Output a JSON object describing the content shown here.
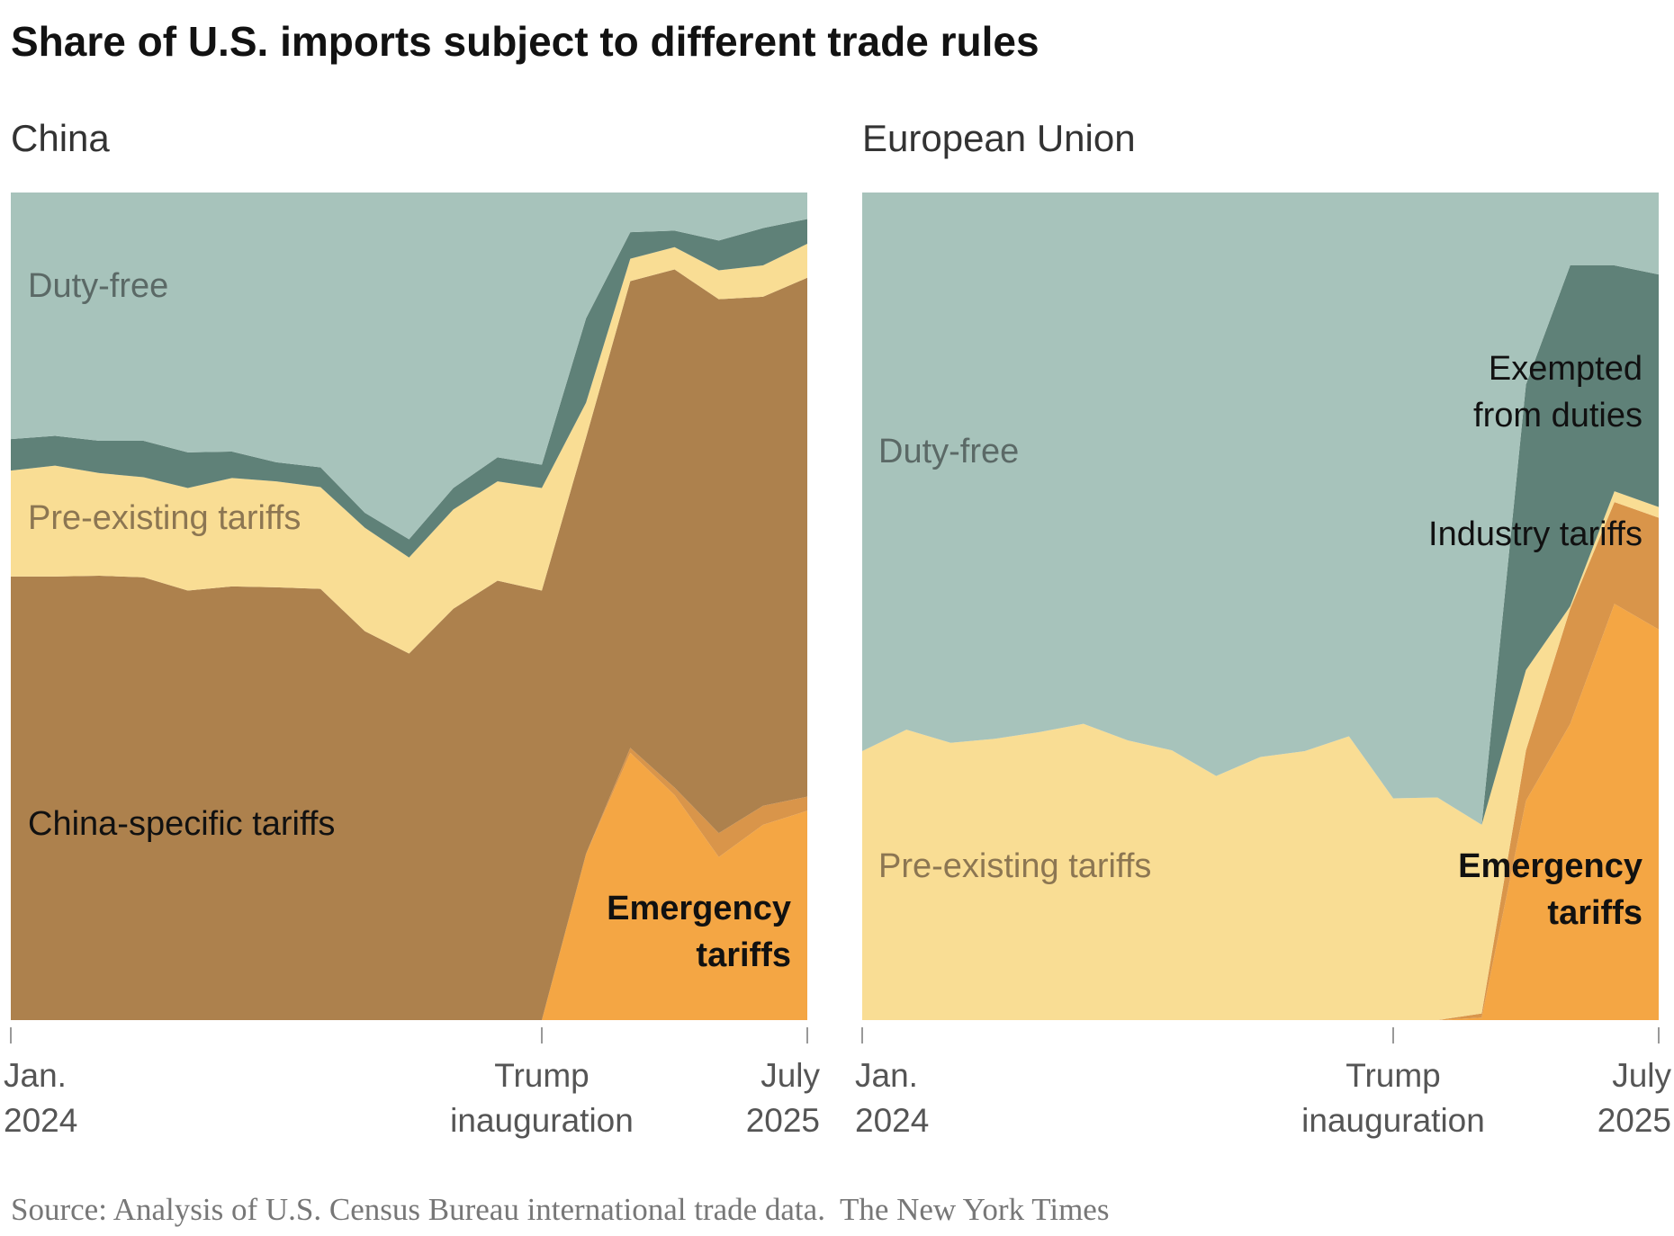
{
  "title": "Share of U.S. imports subject to different trade rules",
  "source": "Source: Analysis of U.S. Census Bureau international trade data.",
  "credit": "The New York Times",
  "chart_data": [
    {
      "type": "stacked-area",
      "title": "China",
      "categories": [
        "Jan. 2024",
        null,
        null,
        null,
        null,
        null,
        null,
        null,
        null,
        null,
        null,
        null,
        "Trump inauguration",
        null,
        null,
        null,
        null,
        null,
        "July 2025"
      ],
      "ylim": [
        0,
        100
      ],
      "series": [
        {
          "name": "Emergency tariffs",
          "color": "#f4a644",
          "values": [
            0,
            0,
            0,
            0,
            0,
            0,
            0,
            0,
            0,
            0,
            0,
            0,
            0,
            20.1,
            32.3,
            27.2,
            19.7,
            23.6,
            25.3
          ]
        },
        {
          "color": "#d9954a",
          "values": [
            0,
            0,
            0,
            0,
            0,
            0,
            0,
            0,
            0,
            0,
            0,
            0,
            0,
            0,
            0.6,
            0.9,
            2.9,
            2.3,
            1.7
          ]
        },
        {
          "name": "China-specific tariffs",
          "color": "#ad814d",
          "values": [
            53.6,
            53.6,
            53.7,
            53.5,
            51.9,
            52.4,
            52.3,
            52.1,
            47.0,
            44.3,
            49.7,
            53.1,
            51.9,
            50.3,
            56.4,
            62.6,
            64.5,
            61.5,
            62.7
          ]
        },
        {
          "name": "Pre-existing tariffs",
          "color": "#f9dd94",
          "values": [
            12.8,
            13.4,
            12.4,
            12.1,
            12.4,
            13.1,
            12.8,
            12.3,
            12.5,
            11.6,
            12.0,
            12.0,
            12.4,
            4.2,
            2.7,
            2.7,
            3.5,
            3.8,
            4.1
          ]
        },
        {
          "color": "#5f8178",
          "values": [
            3.8,
            3.6,
            3.9,
            4.4,
            4.3,
            3.2,
            2.3,
            2.4,
            1.8,
            2.2,
            2.6,
            2.9,
            2.8,
            10.2,
            3.2,
            2.0,
            3.6,
            4.5,
            3.0
          ]
        },
        {
          "name": "Duty-free",
          "color": "#a7c3bb",
          "values": [
            29.8,
            29.4,
            30.0,
            30.0,
            31.4,
            31.3,
            32.6,
            33.2,
            38.7,
            41.9,
            35.7,
            32.0,
            32.9,
            15.2,
            4.8,
            4.6,
            5.8,
            4.3,
            3.2
          ]
        }
      ]
    },
    {
      "type": "stacked-area",
      "title": "European Union",
      "categories": [
        "Jan. 2024",
        null,
        null,
        null,
        null,
        null,
        null,
        null,
        null,
        null,
        null,
        null,
        "Trump inauguration",
        null,
        null,
        null,
        null,
        null,
        "July 2025"
      ],
      "ylim": [
        0,
        100
      ],
      "series": [
        {
          "name": "Emergency tariffs",
          "color": "#f4a644",
          "values": [
            0,
            0,
            0,
            0,
            0,
            0,
            0,
            0,
            0,
            0,
            0,
            0,
            0,
            0,
            0.3,
            26.5,
            35.8,
            50.3,
            47.2
          ]
        },
        {
          "name": "Industry tariffs",
          "color": "#d9954a",
          "values": [
            0,
            0,
            0,
            0,
            0,
            0,
            0,
            0,
            0,
            0,
            0,
            0,
            0,
            0,
            0.5,
            6.1,
            13.9,
            12.3,
            13.5
          ]
        },
        {
          "name": "Pre-existing tariffs",
          "color": "#f9dd94",
          "values": [
            32.5,
            35.1,
            33.5,
            34.0,
            34.8,
            35.8,
            33.8,
            32.6,
            29.5,
            31.8,
            32.5,
            34.3,
            26.8,
            26.9,
            22.8,
            9.7,
            0.3,
            1.3,
            1.3
          ]
        },
        {
          "name": "Exempted from duties",
          "color": "#5f8178",
          "values": [
            0,
            0,
            0,
            0,
            0,
            0,
            0,
            0,
            0,
            0,
            0,
            0,
            0,
            0,
            0,
            34.5,
            41.2,
            27.3,
            28.1
          ]
        },
        {
          "name": "Duty-free",
          "color": "#a7c3bb",
          "values": [
            67.5,
            64.9,
            66.5,
            66.0,
            65.2,
            64.2,
            66.2,
            67.4,
            70.5,
            68.2,
            67.5,
            65.7,
            73.2,
            73.1,
            76.4,
            23.2,
            8.8,
            8.8,
            9.9
          ]
        }
      ]
    }
  ]
}
